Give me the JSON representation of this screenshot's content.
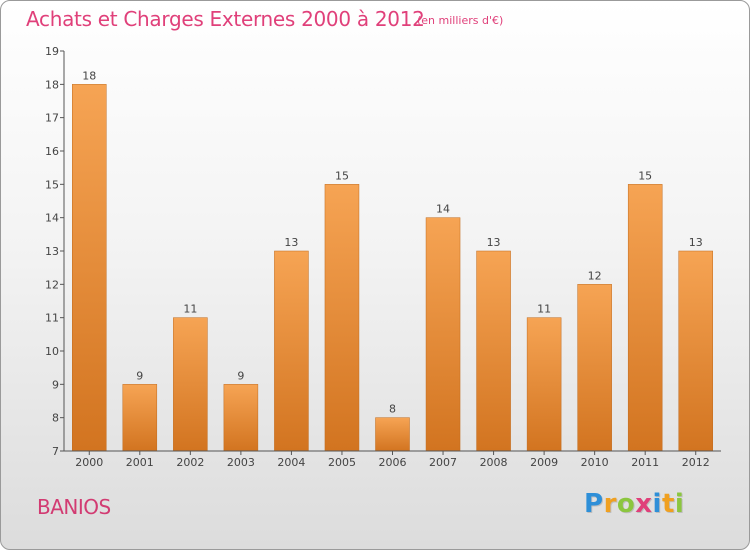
{
  "header": {
    "title": "Achats et Charges Externes 2000 à 2012",
    "subtitle": "(en milliers d'€)"
  },
  "footer": {
    "commune": "BANIOS",
    "brand": "Proxiti",
    "brand_letters": [
      {
        "ch": "P",
        "color": "#2e8fd8"
      },
      {
        "ch": "r",
        "color": "#f0a020"
      },
      {
        "ch": "o",
        "color": "#8cc63f"
      },
      {
        "ch": "x",
        "color": "#e0407a"
      },
      {
        "ch": "i",
        "color": "#2e8fd8"
      },
      {
        "ch": "t",
        "color": "#f0a020"
      },
      {
        "ch": "i",
        "color": "#8cc63f"
      }
    ]
  },
  "colors": {
    "bar_top": "#f6a454",
    "bar_bottom": "#d27420",
    "axis": "#555555",
    "label": "#444444"
  },
  "chart_data": {
    "type": "bar",
    "title": "Achats et Charges Externes 2000 à 2012",
    "subtitle": "(en milliers d'€)",
    "categories": [
      "2000",
      "2001",
      "2002",
      "2003",
      "2004",
      "2005",
      "2006",
      "2007",
      "2008",
      "2009",
      "2010",
      "2011",
      "2012"
    ],
    "values": [
      18,
      9,
      11,
      9,
      13,
      15,
      8,
      14,
      13,
      11,
      12,
      15,
      13
    ],
    "yticks": [
      7,
      8,
      9,
      10,
      11,
      12,
      13,
      14,
      15,
      16,
      17,
      18,
      19
    ],
    "ylim": [
      7,
      19
    ],
    "grid": false,
    "data_labels": true
  }
}
